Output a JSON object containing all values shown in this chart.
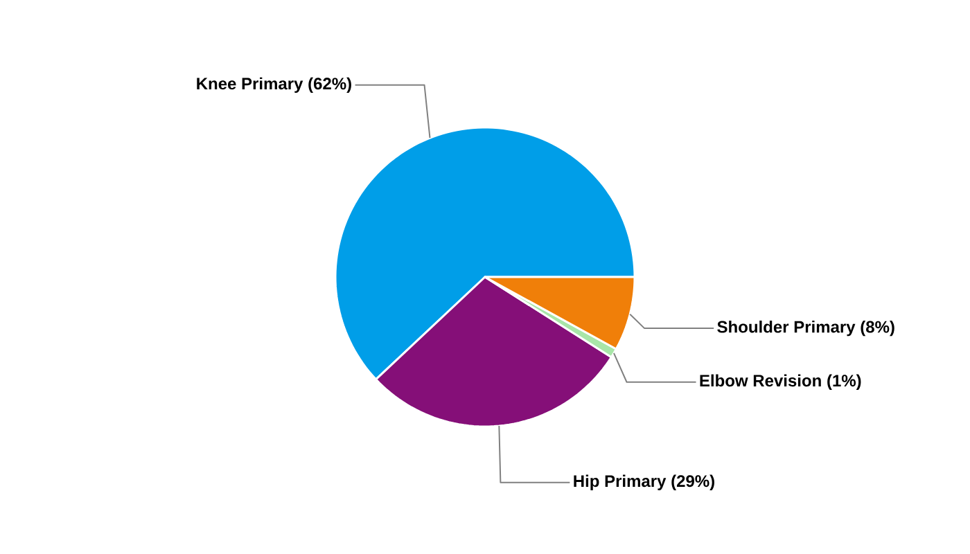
{
  "chart_data": {
    "type": "pie",
    "categories": [
      "Knee Primary (62%)",
      "Hip Primary (29%)",
      "Elbow Revision (1%)",
      "Shoulder Primary (8%)"
    ],
    "values": [
      62,
      29,
      1,
      8
    ],
    "colors": [
      "#009ee8",
      "#850f78",
      "#a8e6a8",
      "#f07f09"
    ]
  }
}
